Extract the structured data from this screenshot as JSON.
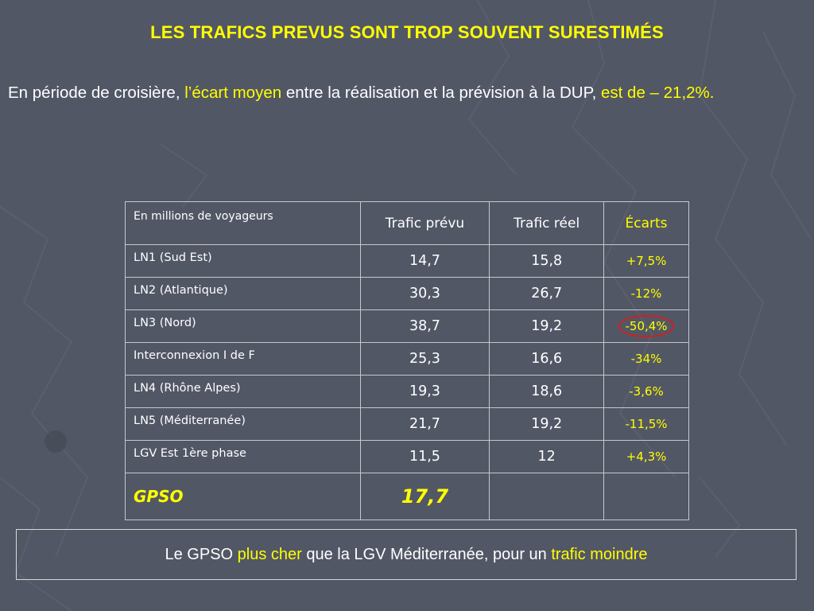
{
  "title": "LES TRAFICS PREVUS SONT TROP SOUVENT SURESTIMÉS",
  "intro": {
    "part1": "En période de croisière, ",
    "part2": "l’écart moyen",
    "part3": " entre la réalisation et la prévision à la DUP, ",
    "part4": "est de – 21,2%."
  },
  "table": {
    "headers": [
      "En millions de voyageurs",
      "Trafic prévu",
      "Trafic réel",
      "Écarts"
    ],
    "rows": [
      {
        "label": "LN1 (Sud Est)",
        "prevu": "14,7",
        "reel": "15,8",
        "ecart": "+7,5%"
      },
      {
        "label": "LN2 (Atlantique)",
        "prevu": "30,3",
        "reel": "26,7",
        "ecart": "-12%"
      },
      {
        "label": "LN3 (Nord)",
        "prevu": "38,7",
        "reel": "19,2",
        "ecart": "-50,4%"
      },
      {
        "label": "Interconnexion I de F",
        "prevu": "25,3",
        "reel": "16,6",
        "ecart": "-34%"
      },
      {
        "label": "LN4 (Rhône Alpes)",
        "prevu": "19,3",
        "reel": "18,6",
        "ecart": "-3,6%"
      },
      {
        "label": "LN5 (Méditerranée)",
        "prevu": "21,7",
        "reel": "19,2",
        "ecart": "-11,5%"
      },
      {
        "label": "LGV Est 1ère phase",
        "prevu": "11,5",
        "reel": "12",
        "ecart": "+4,3%"
      }
    ],
    "gpso": {
      "label": "GPSO",
      "prevu": "17,7",
      "reel": "",
      "ecart": ""
    }
  },
  "conclusion": {
    "part1": "Le GPSO ",
    "part2": "plus cher",
    "part3": " que la LGV Méditerranée, pour un ",
    "part4": "trafic moindre"
  },
  "colors": {
    "background": "#525766",
    "highlight": "#ffff00",
    "text": "#ffffff",
    "circle": "#d02020"
  }
}
